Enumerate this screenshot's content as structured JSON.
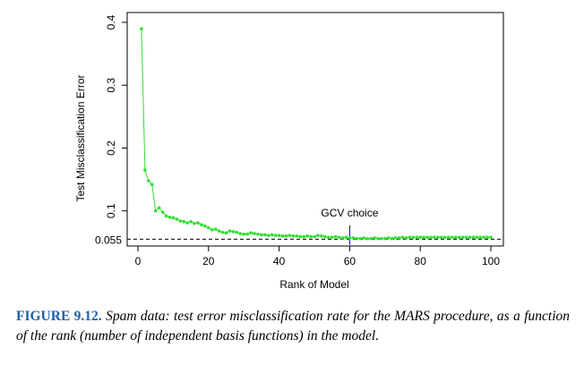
{
  "chart_data": {
    "type": "scatter",
    "xlabel": "Rank of Model",
    "ylabel": "Test Misclassification Error",
    "xlim": [
      0,
      100
    ],
    "ylim": [
      0.05,
      0.4
    ],
    "x_ticks": [
      "0",
      "20",
      "40",
      "60",
      "80",
      "100"
    ],
    "y_ticks": [
      "0.1",
      "0.2",
      "0.3",
      "0.4"
    ],
    "reference_line": {
      "value": 0.055,
      "label": "0.055",
      "style": "dashed",
      "color": "#000000",
      "label_color": "#0000cc"
    },
    "annotation": {
      "text": "GCV choice",
      "x": 60,
      "color": "#0000cc"
    },
    "series_color": "#33dd33",
    "series": [
      {
        "x": [
          1,
          2,
          3,
          4,
          5,
          6,
          7,
          8,
          9,
          10,
          11,
          12,
          13,
          14,
          15,
          16,
          17,
          18,
          19,
          20,
          21,
          22,
          23,
          24,
          25,
          26,
          27,
          28,
          29,
          30,
          31,
          32,
          33,
          34,
          35,
          36,
          37,
          38,
          39,
          40,
          41,
          42,
          43,
          44,
          45,
          46,
          47,
          48,
          49,
          50,
          51,
          52,
          53,
          54,
          55,
          56,
          57,
          58,
          59,
          60,
          61,
          62,
          63,
          64,
          65,
          66,
          67,
          68,
          69,
          70,
          71,
          72,
          73,
          74,
          75,
          76,
          77,
          78,
          79,
          80,
          81,
          82,
          83,
          84,
          85,
          86,
          87,
          88,
          89,
          90,
          91,
          92,
          93,
          94,
          95,
          96,
          97,
          98,
          99,
          100
        ],
        "y": [
          0.39,
          0.165,
          0.148,
          0.142,
          0.1,
          0.105,
          0.098,
          0.092,
          0.09,
          0.089,
          0.087,
          0.084,
          0.083,
          0.081,
          0.083,
          0.08,
          0.081,
          0.078,
          0.076,
          0.073,
          0.07,
          0.071,
          0.068,
          0.066,
          0.065,
          0.068,
          0.067,
          0.066,
          0.064,
          0.063,
          0.063,
          0.065,
          0.064,
          0.063,
          0.062,
          0.062,
          0.061,
          0.062,
          0.061,
          0.061,
          0.06,
          0.06,
          0.061,
          0.06,
          0.06,
          0.059,
          0.059,
          0.06,
          0.059,
          0.059,
          0.061,
          0.06,
          0.059,
          0.058,
          0.058,
          0.059,
          0.058,
          0.057,
          0.058,
          0.057,
          0.057,
          0.056,
          0.056,
          0.057,
          0.056,
          0.056,
          0.057,
          0.056,
          0.056,
          0.056,
          0.057,
          0.056,
          0.057,
          0.057,
          0.058,
          0.057,
          0.058,
          0.058,
          0.058,
          0.058,
          0.058,
          0.058,
          0.058,
          0.058,
          0.058,
          0.058,
          0.058,
          0.058,
          0.058,
          0.058,
          0.058,
          0.058,
          0.058,
          0.058,
          0.058,
          0.058,
          0.058,
          0.058,
          0.058,
          0.058
        ]
      }
    ]
  },
  "caption": {
    "label": "FIGURE 9.12.",
    "text": "Spam data: test error misclassification rate for the MARS procedure, as a function of the rank (number of independent basis functions) in the model."
  }
}
